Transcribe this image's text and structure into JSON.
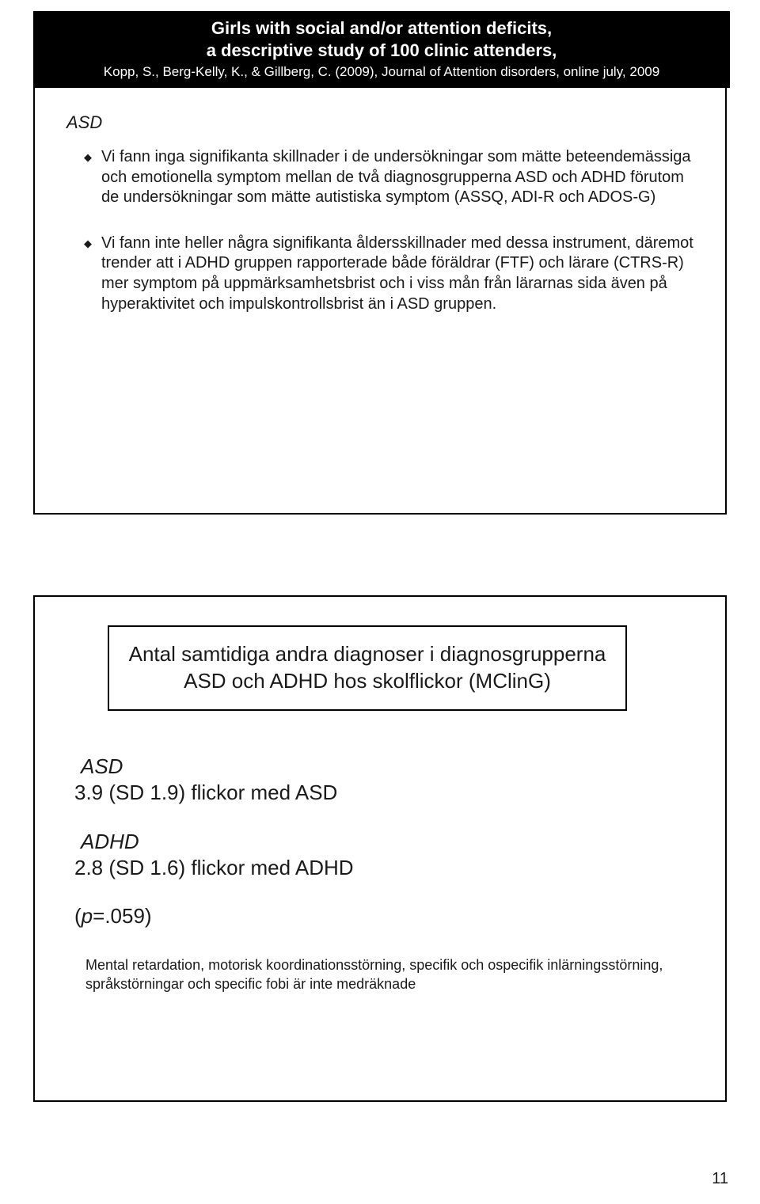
{
  "page_number": "11",
  "slide1": {
    "header": {
      "title": "Girls with social and/or attention deficits,",
      "subtitle": "a descriptive study of 100 clinic attenders,",
      "citation": "Kopp, S., Berg-Kelly, K., & Gillberg, C. (2009), Journal of Attention disorders, online july, 2009"
    },
    "section_label": "ASD",
    "bullets": [
      "Vi fann inga signifikanta skillnader i de undersökningar som mätte beteendemässiga och emotionella symptom mellan de två diagnosgrupperna ASD och ADHD  förutom de undersökningar som mätte autistiska symptom (ASSQ, ADI-R och ADOS-G)",
      "Vi fann inte heller några signifikanta åldersskillnader med dessa instrument, däremot trender att i ADHD gruppen rapporterade både föräldrar  (FTF) och lärare (CTRS-R) mer symptom på uppmärksamhetsbrist och i viss mån från lärarnas sida även på hyperaktivitet och impulskontrollsbrist än i ASD gruppen."
    ]
  },
  "slide2": {
    "title": "Antal samtidiga andra diagnoser i diagnosgrupperna ASD och ADHD hos skolflickor (MClinG)",
    "groups": [
      {
        "label": "ASD",
        "value": "3.9 (SD 1.9) flickor med ASD"
      },
      {
        "label": "ADHD",
        "value": "2.8 (SD 1.6) flickor med  ADHD"
      }
    ],
    "pvalue": {
      "p": "p",
      "rest": "=.059)"
    },
    "footnote": "Mental retardation, motorisk koordinationsstörning, specifik och ospecifik inlärningsstörning, språkstörningar och specific fobi är inte medräknade"
  }
}
